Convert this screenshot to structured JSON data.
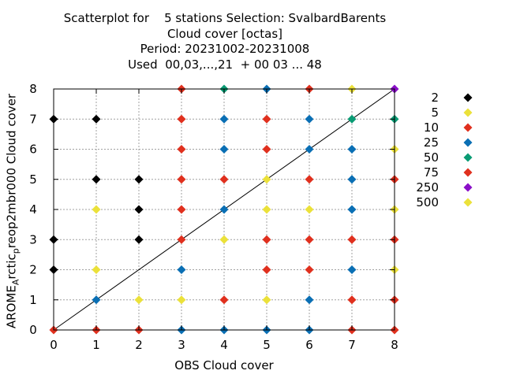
{
  "title_lines": [
    "Scatterplot for    5 stations Selection: SvalbardBarents",
    "Cloud cover [octas]",
    "Period: 20231002-20231008",
    "Used  00,03,...,21  + 00 03 ... 48"
  ],
  "chart_data": {
    "type": "scatter",
    "title": "Scatterplot for    5 stations Selection: SvalbardBarents Cloud cover [octas] Period: 20231002-20231008 Used  00,03,...,21  + 00 03 ... 48",
    "xlabel": "OBS Cloud cover",
    "ylabel": {
      "pre": "AROME",
      "sub": "A",
      "mid": "rctic",
      "sub2": "p",
      "post": "reop2mbr000 Cloud cover"
    },
    "xlim": [
      0,
      8
    ],
    "ylim": [
      0,
      8
    ],
    "xticks": [
      0,
      1,
      2,
      3,
      4,
      5,
      6,
      7,
      8
    ],
    "yticks": [
      0,
      1,
      2,
      3,
      4,
      5,
      6,
      7,
      8
    ],
    "grid": true,
    "diagonal": true,
    "legend_position": "right",
    "legend": [
      {
        "label": "2",
        "color": "#000000"
      },
      {
        "label": "5",
        "color": "#ebe13a"
      },
      {
        "label": "10",
        "color": "#e0301e"
      },
      {
        "label": "25",
        "color": "#0a6fb4"
      },
      {
        "label": "50",
        "color": "#0a9b74"
      },
      {
        "label": "75",
        "color": "#e0301e"
      },
      {
        "label": "250",
        "color": "#8a0fc8"
      },
      {
        "label": "500",
        "color": "#ebe13a"
      }
    ],
    "points": [
      {
        "x": 0,
        "y": 0,
        "c": "#e0301e"
      },
      {
        "x": 0,
        "y": 2,
        "c": "#000000"
      },
      {
        "x": 0,
        "y": 3,
        "c": "#000000"
      },
      {
        "x": 0,
        "y": 7,
        "c": "#000000"
      },
      {
        "x": 1,
        "y": 0,
        "c": "#e0301e"
      },
      {
        "x": 1,
        "y": 1,
        "c": "#0a6fb4"
      },
      {
        "x": 1,
        "y": 2,
        "c": "#ebe13a"
      },
      {
        "x": 1,
        "y": 4,
        "c": "#ebe13a"
      },
      {
        "x": 1,
        "y": 5,
        "c": "#000000"
      },
      {
        "x": 1,
        "y": 7,
        "c": "#000000"
      },
      {
        "x": 2,
        "y": 0,
        "c": "#e0301e"
      },
      {
        "x": 2,
        "y": 1,
        "c": "#ebe13a"
      },
      {
        "x": 2,
        "y": 3,
        "c": "#000000"
      },
      {
        "x": 2,
        "y": 4,
        "c": "#000000"
      },
      {
        "x": 2,
        "y": 5,
        "c": "#000000"
      },
      {
        "x": 3,
        "y": 0,
        "c": "#0a6fb4"
      },
      {
        "x": 3,
        "y": 1,
        "c": "#ebe13a"
      },
      {
        "x": 3,
        "y": 2,
        "c": "#0a6fb4"
      },
      {
        "x": 3,
        "y": 3,
        "c": "#e0301e"
      },
      {
        "x": 3,
        "y": 4,
        "c": "#e0301e"
      },
      {
        "x": 3,
        "y": 5,
        "c": "#e0301e"
      },
      {
        "x": 3,
        "y": 6,
        "c": "#e0301e"
      },
      {
        "x": 3,
        "y": 7,
        "c": "#e0301e"
      },
      {
        "x": 3,
        "y": 8,
        "c": "#e0301e"
      },
      {
        "x": 4,
        "y": 0,
        "c": "#0a6fb4"
      },
      {
        "x": 4,
        "y": 1,
        "c": "#e0301e"
      },
      {
        "x": 4,
        "y": 3,
        "c": "#ebe13a"
      },
      {
        "x": 4,
        "y": 4,
        "c": "#0a6fb4"
      },
      {
        "x": 4,
        "y": 5,
        "c": "#e0301e"
      },
      {
        "x": 4,
        "y": 6,
        "c": "#0a6fb4"
      },
      {
        "x": 4,
        "y": 7,
        "c": "#0a6fb4"
      },
      {
        "x": 4,
        "y": 8,
        "c": "#0a9b74"
      },
      {
        "x": 5,
        "y": 0,
        "c": "#0a6fb4"
      },
      {
        "x": 5,
        "y": 1,
        "c": "#ebe13a"
      },
      {
        "x": 5,
        "y": 2,
        "c": "#e0301e"
      },
      {
        "x": 5,
        "y": 3,
        "c": "#e0301e"
      },
      {
        "x": 5,
        "y": 4,
        "c": "#ebe13a"
      },
      {
        "x": 5,
        "y": 5,
        "c": "#ebe13a"
      },
      {
        "x": 5,
        "y": 6,
        "c": "#e0301e"
      },
      {
        "x": 5,
        "y": 7,
        "c": "#e0301e"
      },
      {
        "x": 5,
        "y": 8,
        "c": "#0a6fb4"
      },
      {
        "x": 6,
        "y": 0,
        "c": "#0a6fb4"
      },
      {
        "x": 6,
        "y": 1,
        "c": "#0a6fb4"
      },
      {
        "x": 6,
        "y": 2,
        "c": "#e0301e"
      },
      {
        "x": 6,
        "y": 3,
        "c": "#e0301e"
      },
      {
        "x": 6,
        "y": 4,
        "c": "#ebe13a"
      },
      {
        "x": 6,
        "y": 5,
        "c": "#e0301e"
      },
      {
        "x": 6,
        "y": 6,
        "c": "#0a6fb4"
      },
      {
        "x": 6,
        "y": 7,
        "c": "#0a6fb4"
      },
      {
        "x": 6,
        "y": 8,
        "c": "#e0301e"
      },
      {
        "x": 7,
        "y": 0,
        "c": "#e0301e"
      },
      {
        "x": 7,
        "y": 1,
        "c": "#e0301e"
      },
      {
        "x": 7,
        "y": 2,
        "c": "#0a6fb4"
      },
      {
        "x": 7,
        "y": 3,
        "c": "#e0301e"
      },
      {
        "x": 7,
        "y": 4,
        "c": "#0a6fb4"
      },
      {
        "x": 7,
        "y": 5,
        "c": "#0a6fb4"
      },
      {
        "x": 7,
        "y": 6,
        "c": "#0a6fb4"
      },
      {
        "x": 7,
        "y": 7,
        "c": "#0a9b74"
      },
      {
        "x": 7,
        "y": 8,
        "c": "#ebe13a"
      },
      {
        "x": 8,
        "y": 0,
        "c": "#e0301e"
      },
      {
        "x": 8,
        "y": 1,
        "c": "#e0301e"
      },
      {
        "x": 8,
        "y": 2,
        "c": "#ebe13a"
      },
      {
        "x": 8,
        "y": 3,
        "c": "#e0301e"
      },
      {
        "x": 8,
        "y": 4,
        "c": "#ebe13a"
      },
      {
        "x": 8,
        "y": 5,
        "c": "#e0301e"
      },
      {
        "x": 8,
        "y": 6,
        "c": "#ebe13a"
      },
      {
        "x": 8,
        "y": 7,
        "c": "#0a9b74"
      },
      {
        "x": 8,
        "y": 8,
        "c": "#8a0fc8"
      }
    ]
  }
}
